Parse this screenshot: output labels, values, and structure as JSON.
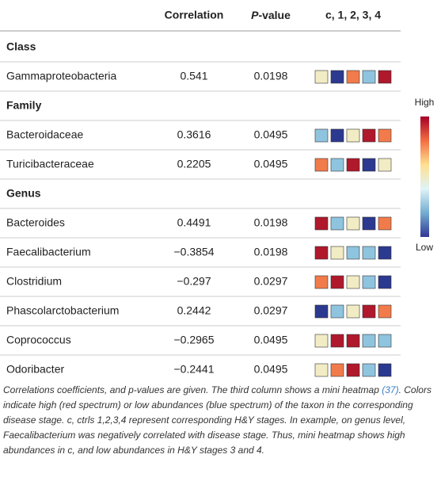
{
  "table": {
    "header": {
      "correlation": "Correlation",
      "p_value_italic": "P",
      "p_value_rest": "-value",
      "heatmap": "c, 1, 2, 3, 4"
    },
    "sections": [
      {
        "title": "Class",
        "rows": [
          {
            "name": "Gammaproteobacteria",
            "correlation": "0.541",
            "p_value": "0.0198",
            "heatmap": [
              "#f2ecc4",
              "#2b3990",
              "#f27b4b",
              "#8fc4df",
              "#b0182c"
            ]
          }
        ]
      },
      {
        "title": "Family",
        "rows": [
          {
            "name": "Bacteroidaceae",
            "correlation": "0.3616",
            "p_value": "0.0495",
            "heatmap": [
              "#8fc4df",
              "#2b3990",
              "#f2ecc4",
              "#b0182c",
              "#f27b4b"
            ]
          },
          {
            "name": "Turicibacteraceae",
            "correlation": "0.2205",
            "p_value": "0.0495",
            "heatmap": [
              "#f27b4b",
              "#8fc4df",
              "#b0182c",
              "#2b3990",
              "#f2ecc4"
            ]
          }
        ]
      },
      {
        "title": "Genus",
        "rows": [
          {
            "name": "Bacteroides",
            "correlation": "0.4491",
            "p_value": "0.0198",
            "heatmap": [
              "#b0182c",
              "#8fc4df",
              "#f2ecc4",
              "#2b3990",
              "#f27b4b"
            ]
          },
          {
            "name": "Faecalibacterium",
            "correlation": "−0.3854",
            "p_value": "0.0198",
            "heatmap": [
              "#b0182c",
              "#f2ecc4",
              "#8fc4df",
              "#8fc4df",
              "#2b3990"
            ]
          },
          {
            "name": "Clostridium",
            "correlation": "−0.297",
            "p_value": "0.0297",
            "heatmap": [
              "#f27b4b",
              "#b0182c",
              "#f2ecc4",
              "#8fc4df",
              "#2b3990"
            ]
          },
          {
            "name": "Phascolarctobacterium",
            "correlation": "0.2442",
            "p_value": "0.0297",
            "heatmap": [
              "#2b3990",
              "#8fc4df",
              "#f2ecc4",
              "#b0182c",
              "#f27b4b"
            ]
          },
          {
            "name": "Coprococcus",
            "correlation": "−0.2965",
            "p_value": "0.0495",
            "heatmap": [
              "#f2ecc4",
              "#b0182c",
              "#b0182c",
              "#8fc4df",
              "#8fc4df"
            ]
          },
          {
            "name": "Odoribacter",
            "correlation": "−0.2441",
            "p_value": "0.0495",
            "heatmap": [
              "#f2ecc4",
              "#f27b4b",
              "#b0182c",
              "#8fc4df",
              "#2b3990"
            ]
          }
        ]
      }
    ],
    "legend": {
      "high": "High",
      "low": "Low",
      "colors": [
        "#a50026",
        "#f46d43",
        "#fee090",
        "#e0f3f8",
        "#74add1",
        "#313695"
      ]
    }
  },
  "caption": {
    "before": "Correlations coefficients, and p-values are given. The third column shows a mini heatmap ",
    "reference": "(37)",
    "after": ". Colors indicate high (red spectrum) or low abundances (blue spectrum) of the taxon in the corresponding disease stage. c, ctrls 1,2,3,4 represent corresponding H&Y stages. In example, on genus level, Faecalibacterium was negatively correlated with disease stage. Thus, mini heatmap shows high abundances in c, and low abundances in H&Y stages 3 and 4."
  }
}
